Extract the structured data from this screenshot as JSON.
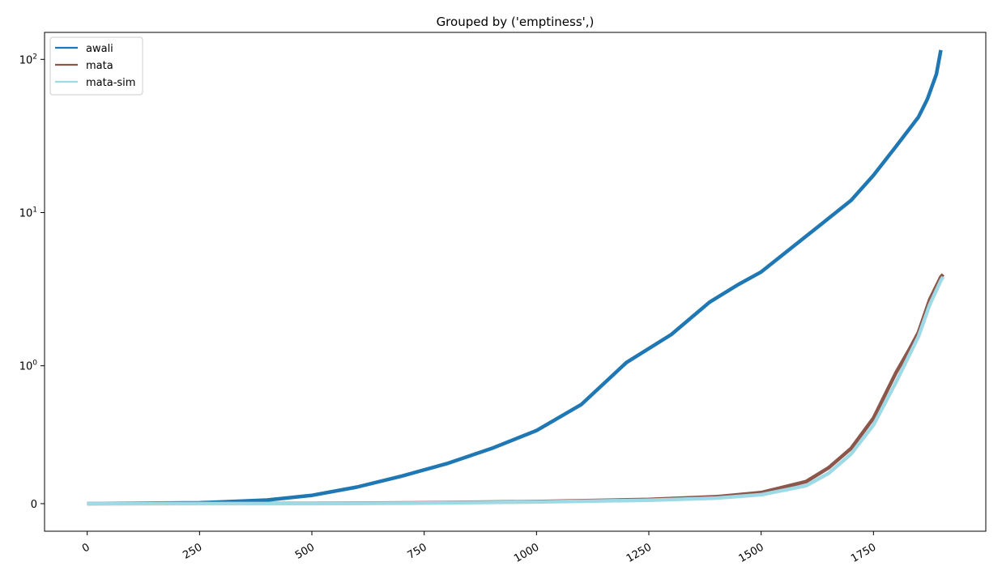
{
  "chart_data": {
    "type": "line",
    "title": "Grouped by ('emptiness',)",
    "xlabel": "",
    "ylabel": "",
    "xlim": [
      -95,
      2000
    ],
    "yscale": "symlog",
    "ylim": [
      -0.2,
      150
    ],
    "x_ticks": [
      0,
      250,
      500,
      750,
      1000,
      1250,
      1500,
      1750
    ],
    "y_ticks": [
      {
        "value": 0,
        "label": "0"
      },
      {
        "value": 1,
        "label": "10",
        "exp": "0"
      },
      {
        "value": 10,
        "label": "10",
        "exp": "1"
      },
      {
        "value": 100,
        "label": "10",
        "exp": "2"
      }
    ],
    "legend_position": "upper-left",
    "grid": false,
    "series": [
      {
        "name": "awali",
        "color": "#1f77b4",
        "x": [
          0,
          250,
          400,
          500,
          600,
          700,
          800,
          900,
          1000,
          1100,
          1200,
          1300,
          1385,
          1450,
          1500,
          1600,
          1700,
          1750,
          1800,
          1850,
          1870,
          1890,
          1900
        ],
        "y": [
          0,
          0.006,
          0.026,
          0.06,
          0.12,
          0.2,
          0.29,
          0.4,
          0.53,
          0.72,
          1.05,
          1.6,
          2.6,
          3.4,
          4.1,
          7.0,
          12.0,
          17.5,
          27,
          42,
          55,
          80,
          115
        ]
      },
      {
        "name": "mata",
        "color": "#8c564b",
        "x": [
          0,
          500,
          750,
          1000,
          1250,
          1400,
          1500,
          1600,
          1650,
          1700,
          1750,
          1800,
          1830,
          1850,
          1875,
          1900,
          1905
        ],
        "y": [
          0,
          0.002,
          0.006,
          0.015,
          0.03,
          0.05,
          0.08,
          0.16,
          0.26,
          0.4,
          0.62,
          0.95,
          1.28,
          1.65,
          2.7,
          3.8,
          3.95
        ]
      },
      {
        "name": "mata-sim",
        "color": "#9edae5",
        "x": [
          0,
          500,
          750,
          1000,
          1250,
          1400,
          1500,
          1600,
          1650,
          1700,
          1750,
          1800,
          1830,
          1850,
          1875,
          1900,
          1905
        ],
        "y": [
          0,
          0.0,
          0.004,
          0.012,
          0.025,
          0.04,
          0.065,
          0.13,
          0.22,
          0.36,
          0.57,
          0.88,
          1.18,
          1.55,
          2.5,
          3.6,
          3.8
        ]
      }
    ]
  }
}
